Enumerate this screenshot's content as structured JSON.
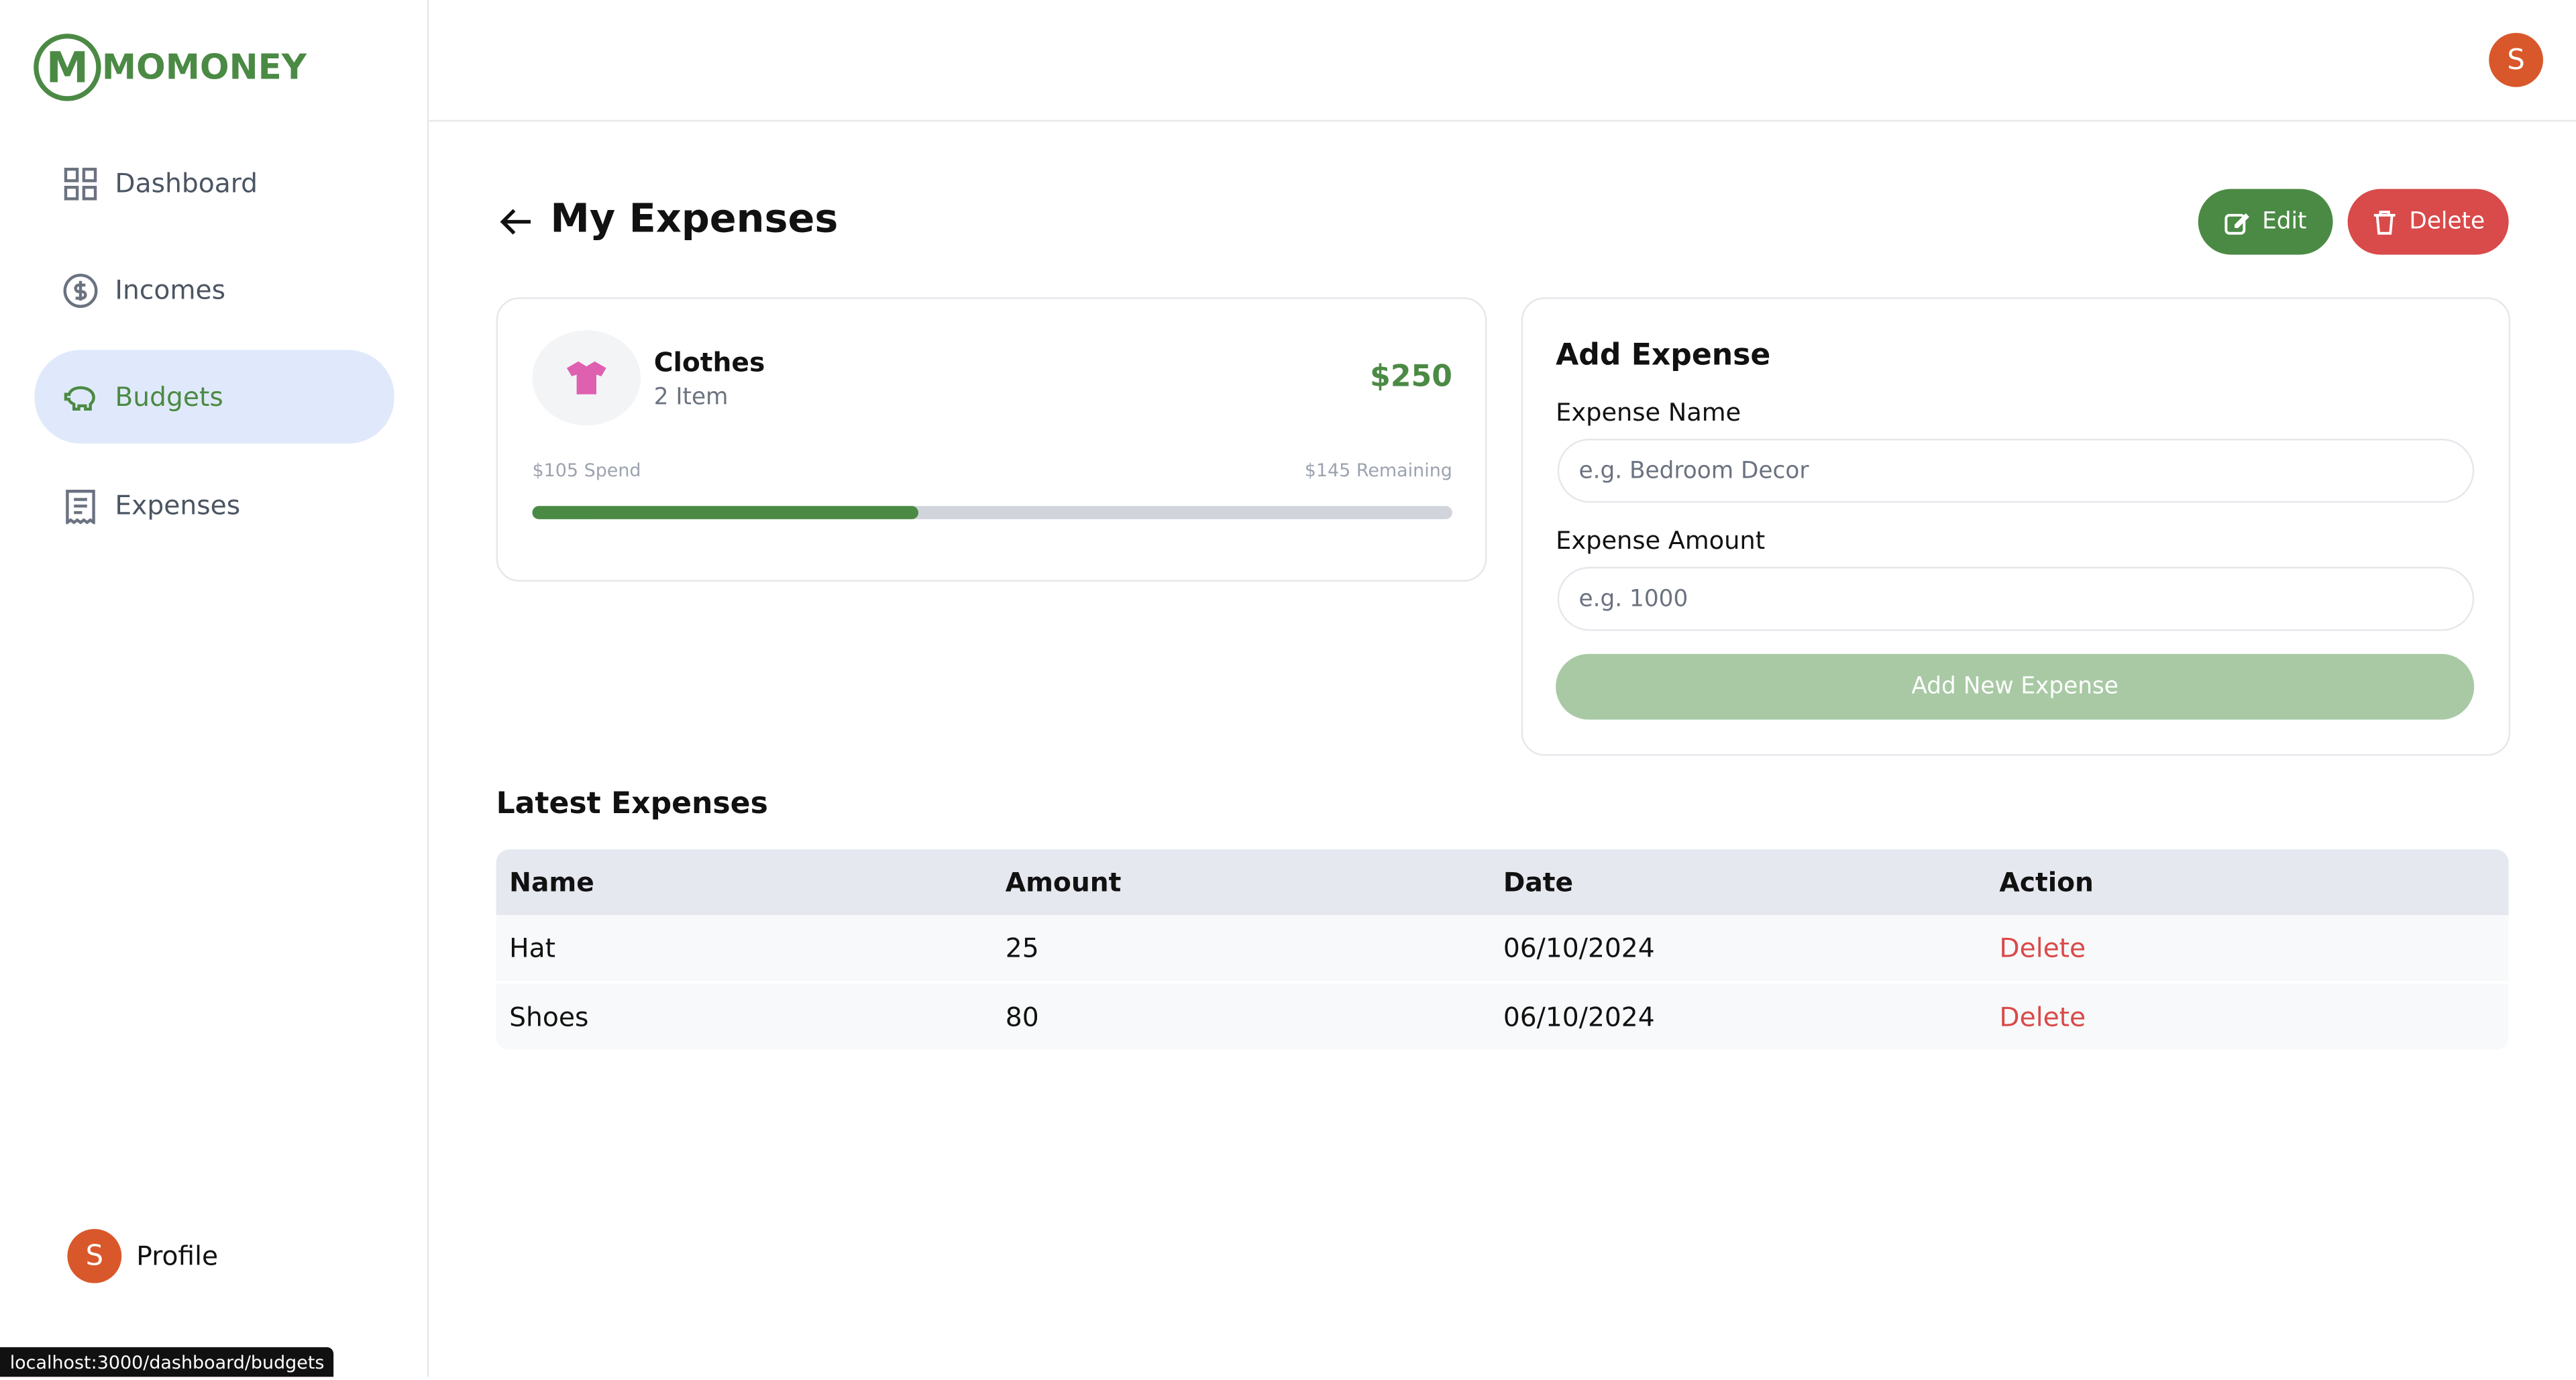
{
  "sidebar": {
    "logo": "MOMONEY",
    "nav": [
      "Dashboard",
      "Incomes",
      "Budgets",
      "Expenses"
    ],
    "profile_initial": "S",
    "profile": "Profile"
  },
  "header": {
    "avatar_initial": "S"
  },
  "title": "My Expenses",
  "buttons": {
    "edit": "Edit",
    "delete": "Delete"
  },
  "budget": {
    "name": "Clothes",
    "items": "2 Item",
    "amount": "$250",
    "spend": "$105 Spend",
    "remaining": "$145 Remaining"
  },
  "form": {
    "title": "Add Expense",
    "name_label": "Expense Name",
    "name_placeholder": "e.g. Bedroom Decor",
    "amount_label": "Expense Amount",
    "amount_placeholder": "e.g. 1000",
    "submit": "Add New Expense"
  },
  "table": {
    "title": "Latest Expenses",
    "headers": [
      "Name",
      "Amount",
      "Date",
      "Action"
    ],
    "rows": [
      [
        "Hat",
        "25",
        "06/10/2024",
        "Delete"
      ],
      [
        "Shoes",
        "80",
        "06/10/2024",
        "Delete"
      ]
    ]
  },
  "status_bar": "localhost:3000/dashboard/budgets"
}
